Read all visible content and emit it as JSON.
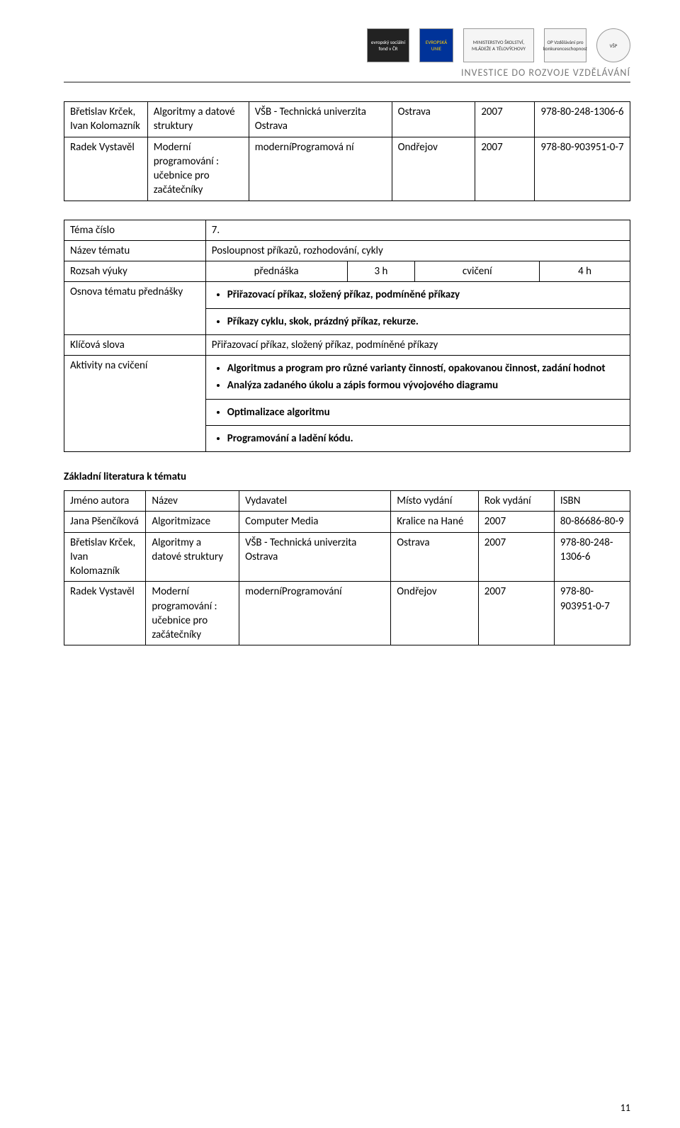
{
  "header": {
    "tagline": "INVESTICE DO ROZVOJE VZDĚLÁVÁNÍ",
    "logos": {
      "esf": "evropský sociální fond v ČR",
      "eu": "EVROPSKÁ UNIE",
      "min": "MINISTERSTVO ŠKOLSTVÍ, MLÁDEŽE A TĚLOVÝCHOVY",
      "op": "OP Vzdělávání pro konkurenceschopnost",
      "vsp": "VŠP"
    }
  },
  "table1": {
    "rows": [
      [
        "Břetislav Krček, Ivan Kolomazník",
        "Algoritmy a datové struktury",
        "VŠB - Technická univerzita Ostrava",
        "Ostrava",
        "2007",
        "978-80-248-1306-6"
      ],
      [
        "Radek Vystavěl",
        "Moderní programování : učebnice pro začátečníky",
        "moderníProgramová ní",
        "Ondřejov",
        "2007",
        "978-80-903951-0-7"
      ]
    ]
  },
  "topic": {
    "topic_num_label": "Téma číslo",
    "topic_num_value": "7.",
    "topic_name_label": "Název tématu",
    "topic_name_value": "Posloupnost příkazů, rozhodování, cykly",
    "scope_label": "Rozsah výuky",
    "scope_lecture_label": "přednáška",
    "scope_lecture_hours": "3 h",
    "scope_practice_label": "cvičení",
    "scope_practice_hours": "4 h",
    "osnova_label": "Osnova tématu přednášky",
    "osnova_bullets": [
      "Přiřazovací příkaz, složený příkaz, podmíněné příkazy",
      "Příkazy cyklu, skok, prázdný příkaz, rekurze."
    ],
    "keywords_label": "Klíčová slova",
    "keywords_value": "Přiřazovací příkaz, složený příkaz, podmíněné příkazy",
    "activities_label": "Aktivity na cvičení",
    "activities_bullets": [
      "Algoritmus a program pro různé varianty činností, opakovanou činnost, zadání hodnot",
      "Analýza zadaného úkolu a  zápis formou vývojového diagramu",
      "Optimalizace algoritmu",
      "Programování a ladění kódu."
    ]
  },
  "literature": {
    "section_title": "Základní literatura  k tématu",
    "headers": [
      "Jméno autora",
      "Název",
      "Vydavatel",
      "Místo vydání",
      "Rok vydání",
      "ISBN"
    ],
    "rows": [
      [
        "Jana Pšenčíková",
        "Algoritmizace",
        "Computer Media",
        "Kralice na Hané",
        "2007",
        "80-86686-80-9"
      ],
      [
        "Břetislav Krček, Ivan Kolomazník",
        "Algoritmy a datové struktury",
        "VŠB - Technická univerzita Ostrava",
        "Ostrava",
        "2007",
        "978-80-248-1306-6"
      ],
      [
        "Radek Vystavěl",
        "Moderní programování : učebnice pro začátečníky",
        "moderníProgramování",
        "Ondřejov",
        "2007",
        "978-80-903951-0-7"
      ]
    ]
  },
  "page_number": "11",
  "colors": {
    "text": "#000000",
    "rule": "#888888",
    "tagline": "#7a7a7a",
    "background": "#ffffff"
  },
  "fonts": {
    "body_family": "Calibri, Arial, sans-serif",
    "body_size_pt": 11,
    "tagline_size_pt": 10
  }
}
